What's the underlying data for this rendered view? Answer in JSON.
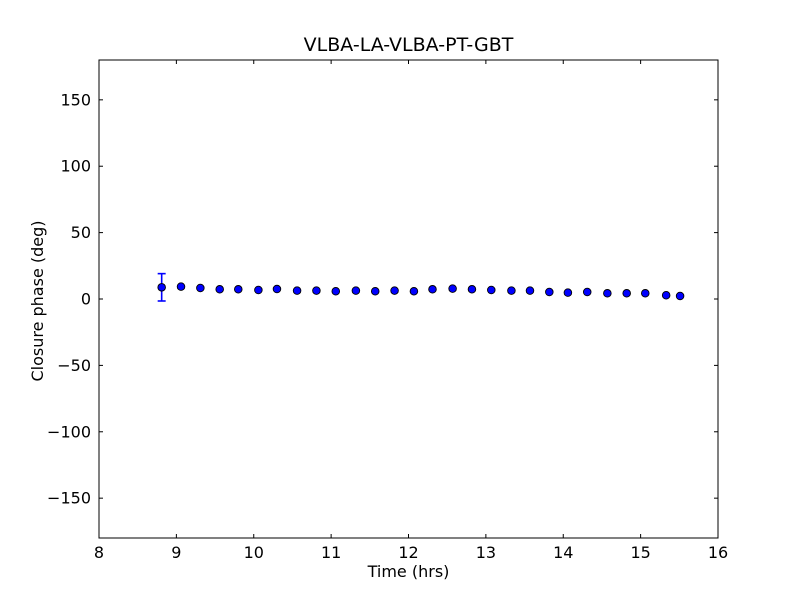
{
  "figure": {
    "background": "#ffffff"
  },
  "chart_data": {
    "type": "scatter",
    "title": "VLBA-LA-VLBA-PT-GBT",
    "xlabel": "Time (hrs)",
    "ylabel": "Closure phase (deg)",
    "xlim": [
      8,
      16
    ],
    "ylim": [
      -180,
      180
    ],
    "xticks": [
      8,
      9,
      10,
      11,
      12,
      13,
      14,
      15,
      16
    ],
    "yticks": [
      -150,
      -100,
      -50,
      0,
      50,
      100,
      150
    ],
    "grid": false,
    "legend_position": "none",
    "marker": "circle",
    "marker_color": "#0000ff",
    "marker_edge_color": "#000000",
    "axis_color": "#000000",
    "series": [
      {
        "name": "closure-phase",
        "x": [
          8.81,
          9.06,
          9.31,
          9.56,
          9.8,
          10.06,
          10.3,
          10.56,
          10.81,
          11.06,
          11.32,
          11.57,
          11.82,
          12.07,
          12.31,
          12.57,
          12.82,
          13.07,
          13.33,
          13.57,
          13.82,
          14.06,
          14.31,
          14.57,
          14.82,
          15.06,
          15.33,
          15.51
        ],
        "y": [
          8.8,
          9.3,
          8.3,
          7.3,
          7.3,
          6.8,
          7.5,
          6.3,
          6.3,
          5.8,
          6.3,
          5.8,
          6.3,
          5.8,
          7.3,
          7.8,
          7.3,
          6.8,
          6.3,
          6.3,
          5.3,
          4.8,
          5.3,
          4.3,
          4.3,
          4.3,
          2.8,
          2.3
        ],
        "yerr": [
          10.3,
          0,
          0,
          0,
          0,
          0,
          0,
          0,
          0,
          0,
          0,
          0,
          0,
          0,
          0,
          0,
          0,
          0,
          0,
          0,
          0,
          0,
          0,
          0,
          0,
          0,
          0,
          0
        ]
      }
    ]
  }
}
